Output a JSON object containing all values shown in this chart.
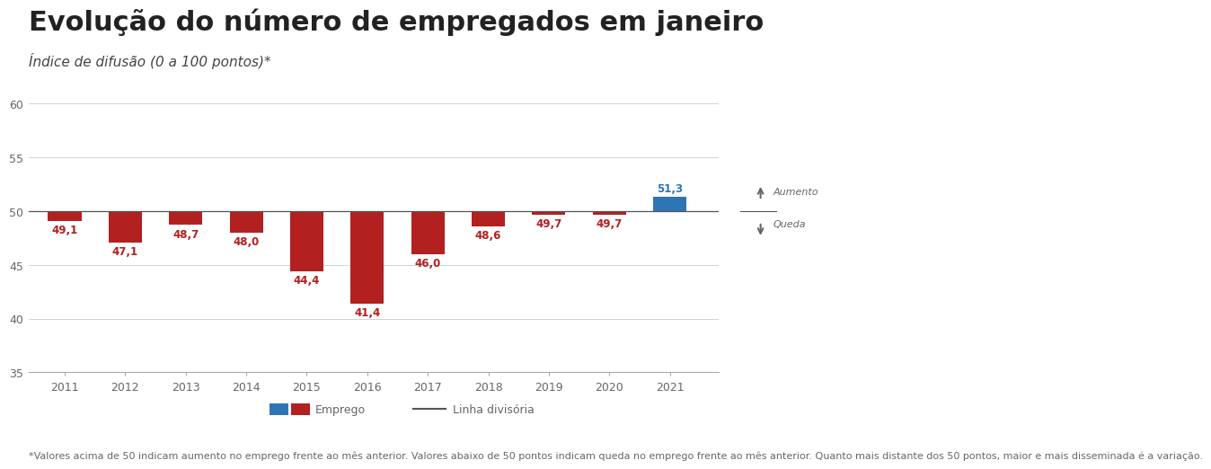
{
  "title": "Evolução do número de empregados em janeiro",
  "subtitle": "Índice de difusão (0 a 100 pontos)*",
  "years": [
    2011,
    2012,
    2013,
    2014,
    2015,
    2016,
    2017,
    2018,
    2019,
    2020,
    2021
  ],
  "values": [
    49.1,
    47.1,
    48.7,
    48.0,
    44.4,
    41.4,
    46.0,
    48.6,
    49.7,
    49.7,
    51.3
  ],
  "bar_colors": [
    "#b22020",
    "#b22020",
    "#b22020",
    "#b22020",
    "#b22020",
    "#b22020",
    "#b22020",
    "#b22020",
    "#b22020",
    "#b22020",
    "#2e75b6"
  ],
  "reference_line": 50,
  "ylim": [
    35,
    60
  ],
  "yticks": [
    35,
    40,
    45,
    50,
    55,
    60
  ],
  "background_color": "#ffffff",
  "text_color": "#222222",
  "subtitle_color": "#444444",
  "tick_color": "#666666",
  "grid_color": "#cccccc",
  "spine_color": "#aaaaaa",
  "refline_color": "#555555",
  "footnote": "*Valores acima de 50 indicam aumento no emprego frente ao mês anterior. Valores abaixo de 50 pontos indicam queda no emprego frente ao mês anterior. Quanto mais distante dos 50 pontos, maior e mais disseminada é a variação.",
  "legend_emprego": "Emprego",
  "legend_linha": "Linha divisória",
  "arrow_up_label": "Aumento",
  "arrow_down_label": "Queda",
  "title_fontsize": 22,
  "subtitle_fontsize": 11,
  "tick_fontsize": 9,
  "label_fontsize": 8.5,
  "footnote_fontsize": 8
}
